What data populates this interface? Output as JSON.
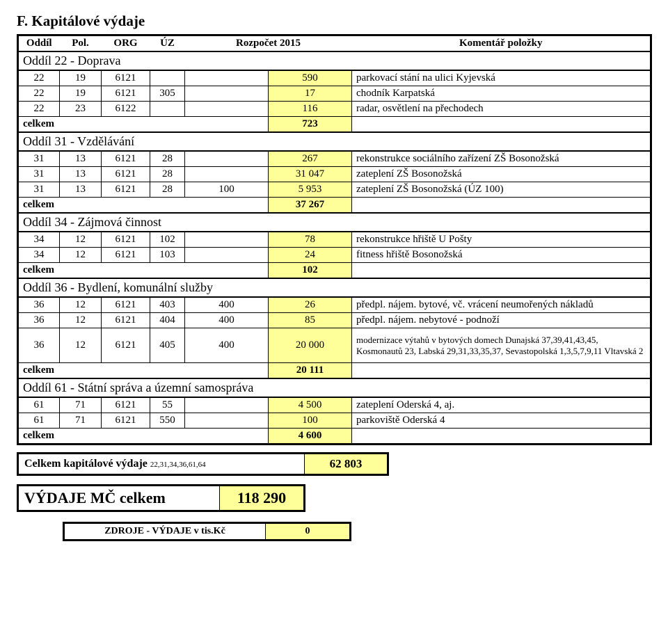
{
  "colors": {
    "highlight": "#ffff99",
    "background": "#ffffff",
    "border": "#000000",
    "text": "#000000"
  },
  "title": "F. Kapitálové výdaje",
  "header": {
    "oddil": "Oddíl",
    "pol": "Pol.",
    "org": "ORG",
    "uz": "ÚZ",
    "rozpocet": "Rozpočet 2015",
    "komentar": "Komentář položky"
  },
  "celkem_label": "celkem",
  "sections": [
    {
      "title": "Oddíl 22 - Doprava",
      "rows": [
        {
          "oddil": "22",
          "pol": "19",
          "org": "6121",
          "uz": "",
          "roz": "",
          "val": "590",
          "kom": "parkovací stání na ulici Kyjevská"
        },
        {
          "oddil": "22",
          "pol": "19",
          "org": "6121",
          "uz": "305",
          "roz": "",
          "val": "17",
          "kom": "chodník Karpatská"
        },
        {
          "oddil": "22",
          "pol": "23",
          "org": "6122",
          "uz": "",
          "roz": "",
          "val": "116",
          "kom": "radar, osvětlení na přechodech"
        }
      ],
      "sum": "723"
    },
    {
      "title": "Oddíl 31 - Vzdělávání",
      "rows": [
        {
          "oddil": "31",
          "pol": "13",
          "org": "6121",
          "uz": "28",
          "roz": "",
          "val": "267",
          "kom": "rekonstrukce sociálního zařízení ZŠ Bosonožská"
        },
        {
          "oddil": "31",
          "pol": "13",
          "org": "6121",
          "uz": "28",
          "roz": "",
          "val": "31 047",
          "kom": "zateplení ZŠ Bosonožská"
        },
        {
          "oddil": "31",
          "pol": "13",
          "org": "6121",
          "uz": "28",
          "roz": "100",
          "val": "5 953",
          "kom": "zateplení ZŠ Bosonožská (ÚZ 100)"
        }
      ],
      "sum": "37 267"
    },
    {
      "title": "Oddíl 34 - Zájmová činnost",
      "rows": [
        {
          "oddil": "34",
          "pol": "12",
          "org": "6121",
          "uz": "102",
          "roz": "",
          "val": "78",
          "kom": "rekonstrukce hřiště U Pošty"
        },
        {
          "oddil": "34",
          "pol": "12",
          "org": "6121",
          "uz": "103",
          "roz": "",
          "val": "24",
          "kom": "fitness hřiště Bosonožská"
        }
      ],
      "sum": "102"
    },
    {
      "title": "Oddíl 36 - Bydlení, komunální služby",
      "rows": [
        {
          "oddil": "36",
          "pol": "12",
          "org": "6121",
          "uz": "403",
          "roz": "400",
          "val": "26",
          "kom": "předpl. nájem. bytové, vč. vrácení neumořených nákladů"
        },
        {
          "oddil": "36",
          "pol": "12",
          "org": "6121",
          "uz": "404",
          "roz": "400",
          "val": "85",
          "kom": "předpl. nájem. nebytové - podnoží"
        },
        {
          "oddil": "36",
          "pol": "12",
          "org": "6121",
          "uz": "405",
          "roz": "400",
          "val": "20 000",
          "kom": "modernizace výtahů v bytových domech Dunajská 37,39,41,43,45, Kosmonautů 23, Labská 29,31,33,35,37, Sevastopolská 1,3,5,7,9,11 Vltavská 2",
          "tall": true
        }
      ],
      "sum": "20 111"
    },
    {
      "title": "Oddíl 61 - Státní správa a územní samospráva",
      "rows": [
        {
          "oddil": "61",
          "pol": "71",
          "org": "6121",
          "uz": "55",
          "roz": "",
          "val": "4 500",
          "kom": "zateplení  Oderská 4, aj."
        },
        {
          "oddil": "61",
          "pol": "71",
          "org": "6121",
          "uz": "550",
          "roz": "",
          "val": "100",
          "kom": "parkoviště Oderská 4"
        }
      ],
      "sum": "4 600"
    }
  ],
  "grand": {
    "label_prefix": "Celkem kapitálové výdaje ",
    "label_sub": "22,31,34,36,61,64",
    "value": "62 803"
  },
  "mc": {
    "label": "VÝDAJE  MČ celkem",
    "value": "118 290"
  },
  "diff": {
    "label": "ZDROJE  - VÝDAJE  v tis.Kč",
    "value": "0"
  }
}
